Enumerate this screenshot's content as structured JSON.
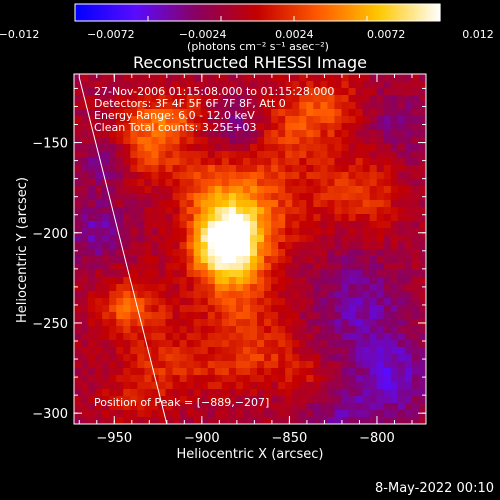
{
  "colorbar": {
    "ticks": [
      -0.012,
      -0.0072,
      -0.0024,
      0.0024,
      0.0072,
      0.012
    ],
    "tick_labels": [
      "−0.012",
      "−0.0072",
      "−0.0024",
      "0.0024",
      "0.0072",
      "0.012"
    ],
    "unit_label": "(photons cm⁻² s⁻¹ asec⁻²)",
    "range": [
      -0.012,
      0.012
    ]
  },
  "info": {
    "time": "27-Nov-2006 01:15:08.000 to 01:15:28.000",
    "detectors": "Detectors: 3F 4F 5F 6F 7F 8F, Att 0",
    "energy": "Energy Range: 6.0 - 12.0 keV",
    "method": "Clean     Total counts: 3.25E+03"
  },
  "peak_label": "Position of Peak = [−889,−207]",
  "footer_date": "8-May-2022 00:10",
  "chart_data": {
    "type": "heatmap",
    "title": "Reconstructed RHESSI Image",
    "xlabel": "Heliocentric X (arcsec)",
    "ylabel": "Heliocentric Y (arcsec)",
    "xlim": [
      -973,
      -772
    ],
    "ylim": [
      -306,
      -112
    ],
    "xticks": [
      -950,
      -900,
      -850,
      -800
    ],
    "yticks": [
      -300,
      -250,
      -200,
      -150
    ],
    "xtick_labels": [
      "−950",
      "−900",
      "−850",
      "−800"
    ],
    "ytick_labels": [
      "−300",
      "−250",
      "−200",
      "−150"
    ],
    "peak": {
      "x": -889,
      "y": -207
    },
    "grid": false,
    "colormap": [
      "#0000ff",
      "#5a0cff",
      "#8a0060",
      "#c40000",
      "#ff5a00",
      "#ffc800",
      "#ffffff"
    ],
    "limb_line": [
      [
        -970,
        -114
      ],
      [
        -920,
        -306
      ]
    ],
    "intensity_blobs": [
      {
        "x": -890,
        "y": -207,
        "w": 12,
        "h": 14,
        "a": 0.012
      },
      {
        "x": -878,
        "y": -200,
        "w": 12,
        "h": 22,
        "a": 0.0075
      },
      {
        "x": -860,
        "y": -185,
        "w": 18,
        "h": 22,
        "a": 0.0035
      },
      {
        "x": -900,
        "y": -175,
        "w": 12,
        "h": 14,
        "a": 0.004
      },
      {
        "x": -930,
        "y": -150,
        "w": 14,
        "h": 14,
        "a": 0.0055
      },
      {
        "x": -915,
        "y": -135,
        "w": 14,
        "h": 8,
        "a": 0.004
      },
      {
        "x": -850,
        "y": -145,
        "w": 14,
        "h": 12,
        "a": 0.003
      },
      {
        "x": -830,
        "y": -130,
        "w": 16,
        "h": 12,
        "a": 0.0045
      },
      {
        "x": -820,
        "y": -175,
        "w": 14,
        "h": 14,
        "a": 0.003
      },
      {
        "x": -800,
        "y": -180,
        "w": 10,
        "h": 20,
        "a": 0.0025
      },
      {
        "x": -945,
        "y": -240,
        "w": 10,
        "h": 10,
        "a": 0.0045
      },
      {
        "x": -930,
        "y": -250,
        "w": 14,
        "h": 18,
        "a": 0.0025
      },
      {
        "x": -880,
        "y": -245,
        "w": 18,
        "h": 14,
        "a": 0.003
      },
      {
        "x": -890,
        "y": -275,
        "w": 20,
        "h": 10,
        "a": 0.003
      },
      {
        "x": -860,
        "y": -265,
        "w": 14,
        "h": 10,
        "a": 0.0025
      },
      {
        "x": -840,
        "y": -280,
        "w": 10,
        "h": 8,
        "a": 0.0025
      },
      {
        "x": -925,
        "y": -280,
        "w": 12,
        "h": 14,
        "a": 0.002
      },
      {
        "x": -945,
        "y": -290,
        "w": 10,
        "h": 10,
        "a": 0.002
      },
      {
        "x": -960,
        "y": -200,
        "w": 12,
        "h": 12,
        "a": -0.004
      },
      {
        "x": -880,
        "y": -140,
        "w": 10,
        "h": 10,
        "a": -0.0035
      },
      {
        "x": -810,
        "y": -240,
        "w": 18,
        "h": 22,
        "a": -0.004
      },
      {
        "x": -790,
        "y": -280,
        "w": 16,
        "h": 16,
        "a": -0.0045
      },
      {
        "x": -820,
        "y": -300,
        "w": 16,
        "h": 10,
        "a": -0.003
      },
      {
        "x": -955,
        "y": -160,
        "w": 10,
        "h": 10,
        "a": -0.0035
      },
      {
        "x": -790,
        "y": -140,
        "w": 12,
        "h": 14,
        "a": -0.003
      }
    ],
    "background_level": -0.0018
  }
}
